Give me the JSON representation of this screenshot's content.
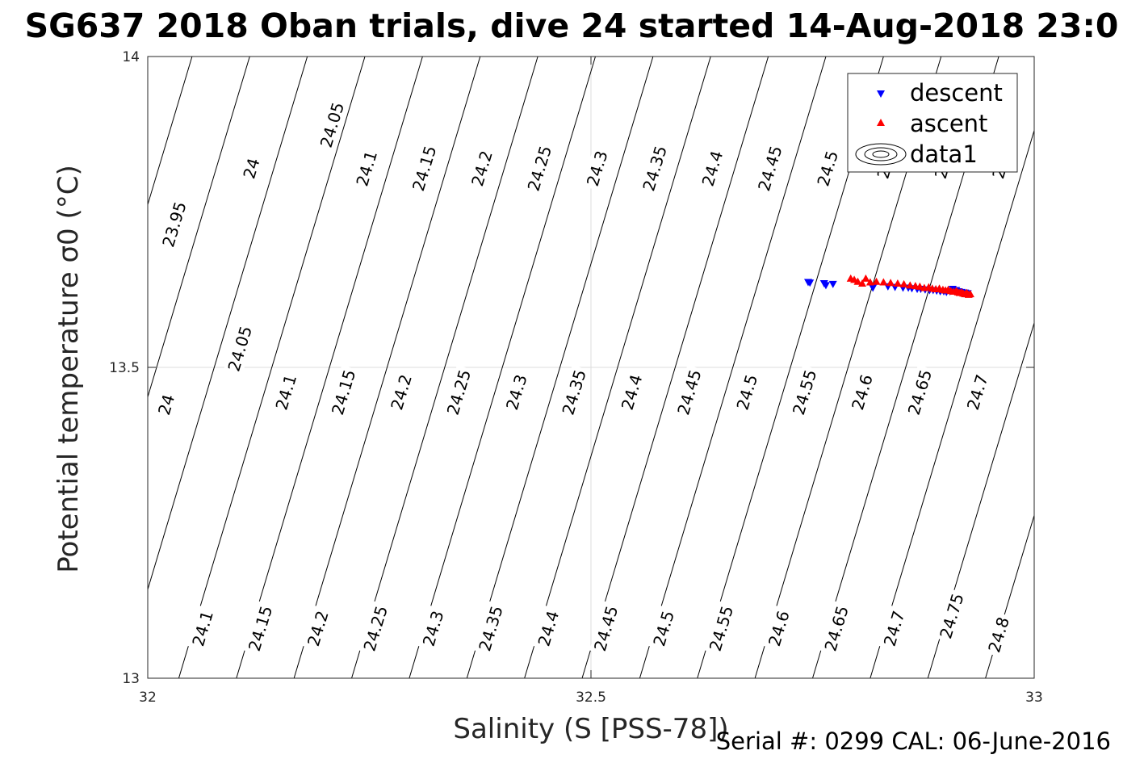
{
  "chart_data": {
    "type": "scatter",
    "title": "SG637 2018 Oban trials, dive 24 started 14-Aug-2018 23:0",
    "xlabel": "Salinity (S [PSS-78])",
    "ylabel": "Potential temperature σ0 (°C)",
    "xlim": [
      32,
      33
    ],
    "ylim": [
      13,
      14
    ],
    "x_ticks": [
      32,
      32.5,
      33
    ],
    "x_tick_labels": [
      "32",
      "32.5",
      "33"
    ],
    "y_ticks": [
      13,
      13.5,
      14
    ],
    "y_tick_labels": [
      "13",
      "13.5",
      "14"
    ],
    "grid": true,
    "legend_position": "top-right",
    "legend": [
      "descent",
      "ascent",
      "data1"
    ],
    "footer": "Serial #: 0299 CAL: 06-June-2016",
    "colors": {
      "descent": "#0000ff",
      "ascent": "#ff0000",
      "contour": "#000000",
      "grid": "#dcdcdc"
    },
    "contours": {
      "lines": [
        {
          "x_top": 31.985,
          "x_bottom": 31.775
        },
        {
          "x_top": 32.05,
          "x_bottom": 31.84
        },
        {
          "x_top": 32.115,
          "x_bottom": 31.905
        },
        {
          "x_top": 32.18,
          "x_bottom": 31.97
        },
        {
          "x_top": 32.245,
          "x_bottom": 32.035
        },
        {
          "x_top": 32.31,
          "x_bottom": 32.1
        },
        {
          "x_top": 32.375,
          "x_bottom": 32.165
        },
        {
          "x_top": 32.44,
          "x_bottom": 32.23
        },
        {
          "x_top": 32.505,
          "x_bottom": 32.295
        },
        {
          "x_top": 32.57,
          "x_bottom": 32.36
        },
        {
          "x_top": 32.635,
          "x_bottom": 32.425
        },
        {
          "x_top": 32.7,
          "x_bottom": 32.49
        },
        {
          "x_top": 32.765,
          "x_bottom": 32.555
        },
        {
          "x_top": 32.83,
          "x_bottom": 32.62
        },
        {
          "x_top": 32.895,
          "x_bottom": 32.685
        },
        {
          "x_top": 32.96,
          "x_bottom": 32.75
        },
        {
          "x_top": 33.025,
          "x_bottom": 32.815
        },
        {
          "x_top": 33.09,
          "x_bottom": 32.88
        },
        {
          "x_top": 33.155,
          "x_bottom": 32.945
        },
        {
          "x_top": 33.22,
          "x_bottom": 33.01
        },
        {
          "x_top": 33.285,
          "x_bottom": 33.075
        }
      ],
      "labels": [
        {
          "text": "24.05",
          "s": 32.208,
          "t": 13.89
        },
        {
          "text": "24",
          "s": 32.117,
          "t": 13.82
        },
        {
          "text": "24.1",
          "s": 32.247,
          "t": 13.82
        },
        {
          "text": "24.15",
          "s": 32.312,
          "t": 13.82
        },
        {
          "text": "24.2",
          "s": 32.377,
          "t": 13.82
        },
        {
          "text": "24.25",
          "s": 32.442,
          "t": 13.82
        },
        {
          "text": "24.3",
          "s": 32.507,
          "t": 13.82
        },
        {
          "text": "24.35",
          "s": 32.572,
          "t": 13.82
        },
        {
          "text": "24.4",
          "s": 32.637,
          "t": 13.82
        },
        {
          "text": "24.45",
          "s": 32.702,
          "t": 13.82
        },
        {
          "text": "24.5",
          "s": 32.767,
          "t": 13.82
        },
        {
          "text": "24",
          "s": 32.832,
          "t": 13.82
        },
        {
          "text": "24",
          "s": 32.897,
          "t": 13.82
        },
        {
          "text": "24",
          "s": 32.962,
          "t": 13.82
        },
        {
          "text": "23.95",
          "s": 32.03,
          "t": 13.73
        },
        {
          "text": "24",
          "s": 32.021,
          "t": 13.44
        },
        {
          "text": "24.05",
          "s": 32.104,
          "t": 13.53
        },
        {
          "text": "24.1",
          "s": 32.156,
          "t": 13.46
        },
        {
          "text": "24.15",
          "s": 32.221,
          "t": 13.46
        },
        {
          "text": "24.2",
          "s": 32.286,
          "t": 13.46
        },
        {
          "text": "24.25",
          "s": 32.351,
          "t": 13.46
        },
        {
          "text": "24.3",
          "s": 32.416,
          "t": 13.46
        },
        {
          "text": "24.35",
          "s": 32.481,
          "t": 13.46
        },
        {
          "text": "24.4",
          "s": 32.546,
          "t": 13.46
        },
        {
          "text": "24.45",
          "s": 32.611,
          "t": 13.46
        },
        {
          "text": "24.5",
          "s": 32.676,
          "t": 13.46
        },
        {
          "text": "24.55",
          "s": 32.741,
          "t": 13.46
        },
        {
          "text": "24.6",
          "s": 32.806,
          "t": 13.46
        },
        {
          "text": "24.65",
          "s": 32.871,
          "t": 13.46
        },
        {
          "text": "24.7",
          "s": 32.936,
          "t": 13.46
        },
        {
          "text": "24.1",
          "s": 32.062,
          "t": 13.08
        },
        {
          "text": "24.15",
          "s": 32.127,
          "t": 13.08
        },
        {
          "text": "24.2",
          "s": 32.192,
          "t": 13.08
        },
        {
          "text": "24.25",
          "s": 32.257,
          "t": 13.08
        },
        {
          "text": "24.3",
          "s": 32.322,
          "t": 13.08
        },
        {
          "text": "24.35",
          "s": 32.387,
          "t": 13.08
        },
        {
          "text": "24.4",
          "s": 32.452,
          "t": 13.08
        },
        {
          "text": "24.45",
          "s": 32.517,
          "t": 13.08
        },
        {
          "text": "24.5",
          "s": 32.582,
          "t": 13.08
        },
        {
          "text": "24.55",
          "s": 32.647,
          "t": 13.08
        },
        {
          "text": "24.6",
          "s": 32.712,
          "t": 13.08
        },
        {
          "text": "24.65",
          "s": 32.777,
          "t": 13.08
        },
        {
          "text": "24.7",
          "s": 32.842,
          "t": 13.08
        },
        {
          "text": "24.75",
          "s": 32.907,
          "t": 13.1
        },
        {
          "text": "24.8",
          "s": 32.96,
          "t": 13.07
        }
      ]
    },
    "series": [
      {
        "name": "descent",
        "marker": "triangle-down",
        "x": [
          32.745,
          32.747,
          32.763,
          32.765,
          32.773,
          32.818,
          32.835,
          32.843,
          32.852,
          32.858,
          32.862,
          32.868,
          32.872,
          32.877,
          32.882,
          32.886,
          32.89,
          32.894,
          32.898,
          32.901,
          32.905,
          32.908,
          32.91,
          32.912,
          32.915,
          32.918,
          32.92,
          32.922,
          32.925
        ],
        "y": [
          13.637,
          13.636,
          13.635,
          13.632,
          13.634,
          13.628,
          13.63,
          13.629,
          13.628,
          13.628,
          13.627,
          13.626,
          13.626,
          13.625,
          13.624,
          13.624,
          13.623,
          13.622,
          13.622,
          13.621,
          13.622,
          13.626,
          13.623,
          13.624,
          13.622,
          13.621,
          13.619,
          13.62,
          13.619
        ]
      },
      {
        "name": "ascent",
        "marker": "triangle-up",
        "x": [
          32.793,
          32.797,
          32.801,
          32.806,
          32.81,
          32.815,
          32.822,
          32.83,
          32.838,
          32.846,
          32.853,
          32.86,
          32.866,
          32.871,
          32.876,
          32.881,
          32.885,
          32.889,
          32.893,
          32.897,
          32.9,
          32.903,
          32.906,
          32.909,
          32.912,
          32.914,
          32.916,
          32.918,
          32.92,
          32.922,
          32.924,
          32.926,
          32.928
        ],
        "y": [
          13.643,
          13.641,
          13.638,
          13.635,
          13.643,
          13.637,
          13.638,
          13.637,
          13.636,
          13.635,
          13.634,
          13.632,
          13.631,
          13.63,
          13.628,
          13.629,
          13.627,
          13.626,
          13.627,
          13.625,
          13.624,
          13.625,
          13.623,
          13.622,
          13.623,
          13.621,
          13.62,
          13.621,
          13.619,
          13.618,
          13.62,
          13.617,
          13.618
        ]
      }
    ]
  }
}
